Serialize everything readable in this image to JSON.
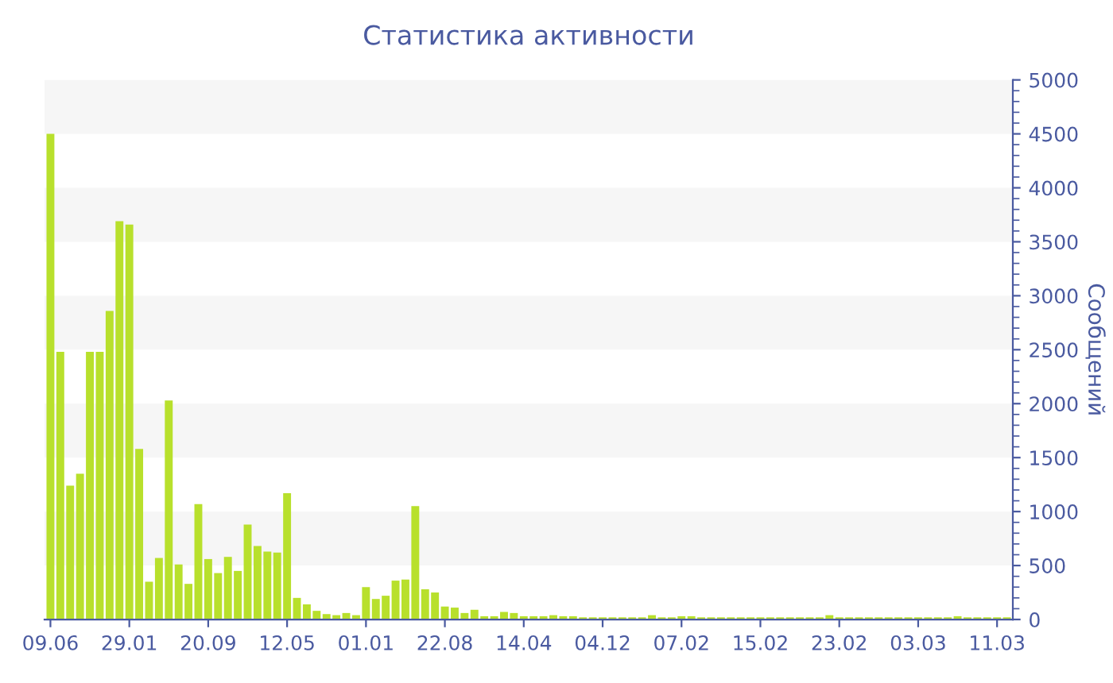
{
  "chart_data": {
    "type": "bar",
    "title": "Статистика активности",
    "ylabel": "Сообщений",
    "categories": [
      "09.06",
      null,
      null,
      null,
      null,
      null,
      null,
      null,
      "29.01",
      null,
      null,
      null,
      null,
      null,
      null,
      null,
      "20.09",
      null,
      null,
      null,
      null,
      null,
      null,
      null,
      "12.05",
      null,
      null,
      null,
      null,
      null,
      null,
      null,
      "01.01",
      null,
      null,
      null,
      null,
      null,
      null,
      null,
      "22.08",
      null,
      null,
      null,
      null,
      null,
      null,
      null,
      "14.04",
      null,
      null,
      null,
      null,
      null,
      null,
      null,
      "04.12",
      null,
      null,
      null,
      null,
      null,
      null,
      null,
      "07.02",
      null,
      null,
      null,
      null,
      null,
      null,
      null,
      "15.02",
      null,
      null,
      null,
      null,
      null,
      null,
      null,
      "23.02",
      null,
      null,
      null,
      null,
      null,
      null,
      null,
      "03.03",
      null,
      null,
      null,
      null,
      null,
      null,
      null,
      "11.03",
      null
    ],
    "values": [
      4500,
      2480,
      1240,
      1350,
      2480,
      2480,
      2860,
      3690,
      3660,
      1580,
      350,
      570,
      2030,
      510,
      330,
      1070,
      560,
      430,
      580,
      450,
      880,
      680,
      630,
      620,
      1170,
      200,
      140,
      80,
      50,
      40,
      60,
      40,
      300,
      190,
      220,
      360,
      370,
      1050,
      280,
      250,
      120,
      110,
      60,
      90,
      30,
      30,
      70,
      60,
      30,
      30,
      30,
      40,
      30,
      30,
      20,
      20,
      20,
      20,
      20,
      20,
      20,
      40,
      20,
      20,
      30,
      30,
      20,
      20,
      20,
      20,
      20,
      20,
      20,
      20,
      20,
      20,
      20,
      20,
      20,
      40,
      20,
      20,
      20,
      20,
      20,
      20,
      20,
      20,
      20,
      20,
      20,
      20,
      30,
      20,
      20,
      20,
      20,
      20
    ],
    "color": "#b8e02c",
    "ylim": [
      0,
      5000
    ],
    "yticks": [
      0,
      500,
      1000,
      1500,
      2000,
      2500,
      3000,
      3500,
      4000,
      4500,
      5000
    ],
    "bands": [
      {
        "axis": "y",
        "from": 500,
        "to": 1000,
        "color": "#f6f6f6"
      },
      {
        "axis": "y",
        "from": 1500,
        "to": 2000,
        "color": "#f6f6f6"
      },
      {
        "axis": "y",
        "from": 2500,
        "to": 3000,
        "color": "#f6f6f6"
      },
      {
        "axis": "y",
        "from": 3500,
        "to": 4000,
        "color": "#f6f6f6"
      },
      {
        "axis": "y",
        "from": 4500,
        "to": 5000,
        "color": "#f6f6f6"
      }
    ]
  }
}
